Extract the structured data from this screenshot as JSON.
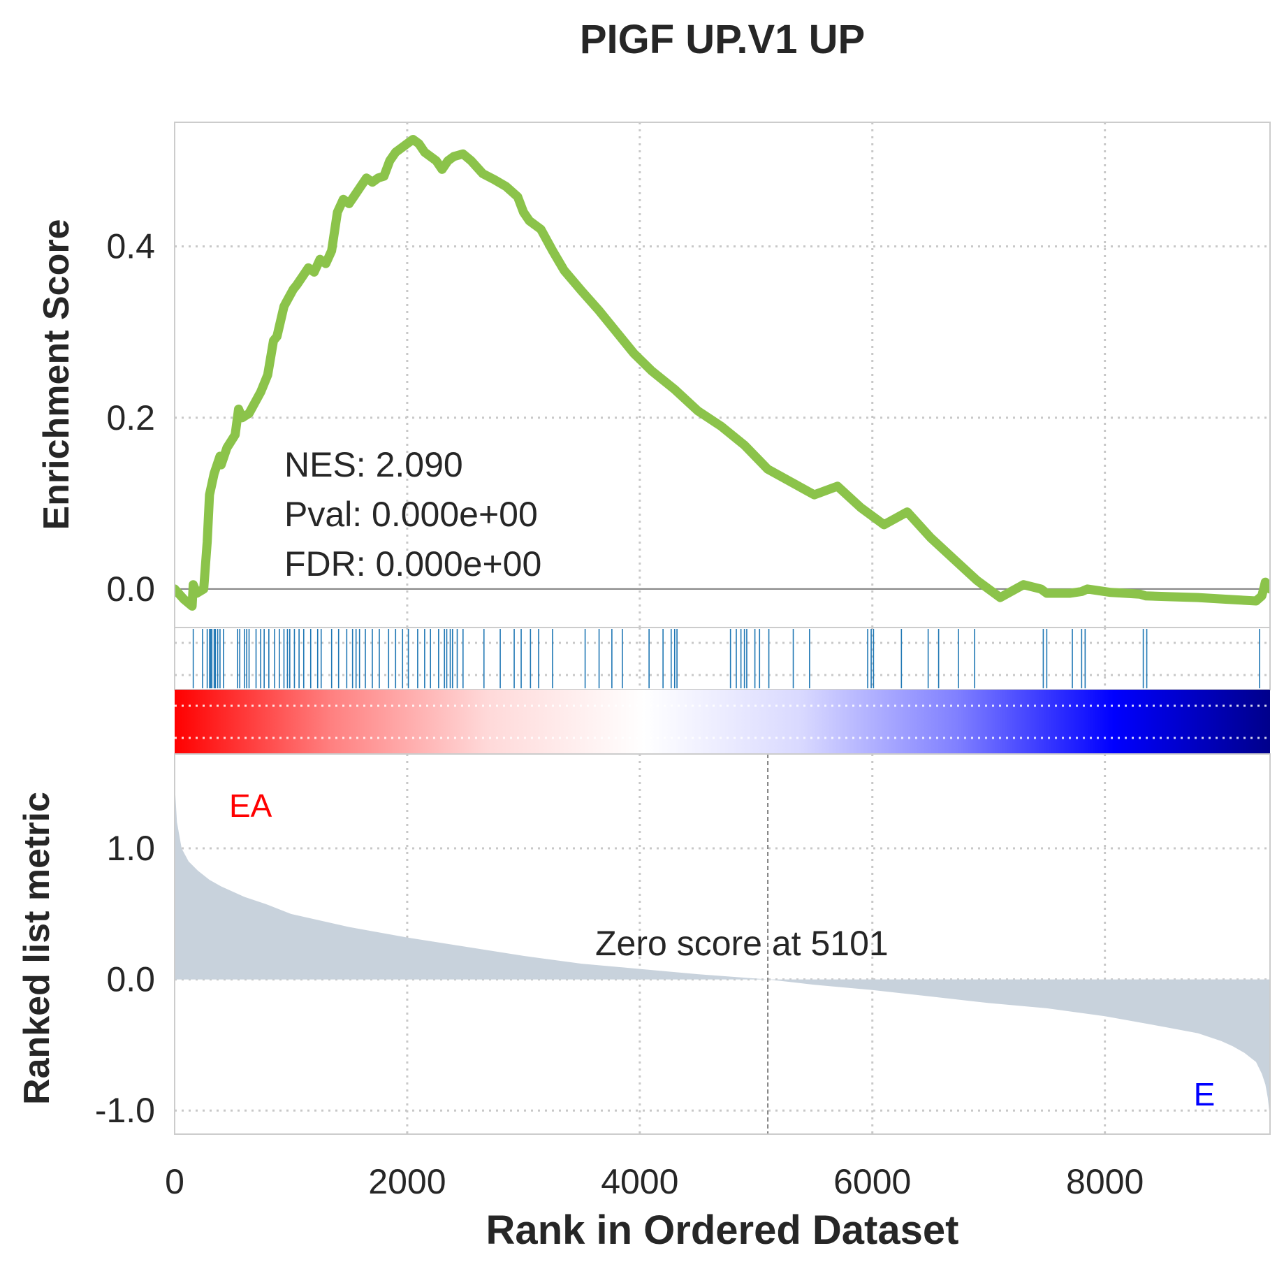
{
  "chart_data": {
    "type": "line",
    "title": "PIGF UP.V1 UP",
    "xlabel": "Rank in Ordered Dataset",
    "xlim": [
      0,
      9420
    ],
    "x_ticks": [
      "0",
      "2000",
      "4000",
      "6000",
      "8000"
    ],
    "x_tick_values": [
      0,
      2000,
      4000,
      6000,
      8000
    ],
    "grid": true,
    "es_panel": {
      "ylabel": "Enrichment Score",
      "ylim": [
        -0.045,
        0.545
      ],
      "y_ticks": [
        "0.0",
        "0.2",
        "0.4"
      ],
      "y_tick_values": [
        0.0,
        0.2,
        0.4
      ],
      "line_color": "#8bc34a",
      "series": [
        {
          "x": [
            0,
            80,
            150,
            160,
            190,
            250,
            280,
            300,
            340,
            390,
            400,
            450,
            520,
            550,
            580,
            640,
            700,
            740,
            800,
            850,
            880,
            940,
            960,
            1020,
            1050,
            1100,
            1150,
            1200,
            1250,
            1300,
            1350,
            1400,
            1450,
            1500,
            1550,
            1600,
            1650,
            1700,
            1750,
            1800,
            1850,
            1900,
            1950,
            2000,
            2050,
            2100,
            2150,
            2200,
            2250,
            2300,
            2350,
            2400,
            2480,
            2550,
            2650,
            2750,
            2850,
            2950,
            3000,
            3050,
            3150,
            3250,
            3350,
            3500,
            3650,
            3800,
            3950,
            4100,
            4300,
            4500,
            4700,
            4900,
            5100,
            5300,
            5500,
            5700,
            5900,
            6100,
            6300,
            6500,
            6700,
            6900,
            7100,
            7300,
            7450,
            7500,
            7700,
            7800,
            7850,
            8050,
            8300,
            8350,
            8550,
            8800,
            9050,
            9300,
            9350,
            9380,
            9420
          ],
          "y": [
            0.0,
            -0.012,
            -0.02,
            0.005,
            -0.005,
            0.0,
            0.055,
            0.11,
            0.135,
            0.155,
            0.145,
            0.165,
            0.18,
            0.21,
            0.2,
            0.205,
            0.22,
            0.23,
            0.25,
            0.29,
            0.295,
            0.33,
            0.335,
            0.35,
            0.355,
            0.365,
            0.375,
            0.37,
            0.385,
            0.38,
            0.395,
            0.44,
            0.455,
            0.45,
            0.46,
            0.47,
            0.48,
            0.475,
            0.48,
            0.482,
            0.5,
            0.51,
            0.515,
            0.52,
            0.525,
            0.52,
            0.51,
            0.505,
            0.5,
            0.49,
            0.5,
            0.505,
            0.508,
            0.5,
            0.485,
            0.478,
            0.47,
            0.458,
            0.44,
            0.43,
            0.42,
            0.395,
            0.372,
            0.348,
            0.325,
            0.3,
            0.275,
            0.255,
            0.233,
            0.208,
            0.19,
            0.168,
            0.14,
            0.125,
            0.11,
            0.12,
            0.095,
            0.075,
            0.09,
            0.06,
            0.035,
            0.01,
            -0.01,
            0.005,
            0.0,
            -0.005,
            -0.005,
            -0.003,
            0.0,
            -0.004,
            -0.006,
            -0.008,
            -0.009,
            -0.01,
            -0.012,
            -0.014,
            -0.008,
            0.008,
            0.0
          ]
        }
      ],
      "stats": {
        "nes": "NES: 2.090",
        "pval": "Pval: 0.000e+00",
        "fdr": "FDR: 0.000e+00"
      }
    },
    "hits": {
      "color": "#1f77b4",
      "positions": [
        160,
        240,
        280,
        300,
        310,
        320,
        340,
        350,
        370,
        390,
        420,
        540,
        560,
        600,
        620,
        640,
        700,
        740,
        770,
        810,
        860,
        900,
        940,
        970,
        990,
        1030,
        1070,
        1110,
        1170,
        1230,
        1260,
        1350,
        1410,
        1480,
        1530,
        1560,
        1590,
        1640,
        1700,
        1760,
        1840,
        1900,
        1960,
        2010,
        2090,
        2150,
        2200,
        2270,
        2320,
        2340,
        2370,
        2390,
        2430,
        2480,
        2660,
        2800,
        2920,
        2980,
        3060,
        3130,
        3250,
        3530,
        3650,
        3760,
        3850,
        4080,
        4200,
        4270,
        4300,
        4320,
        4780,
        4830,
        4870,
        4900,
        4920,
        4990,
        5030,
        5110,
        5320,
        5460,
        5960,
        5990,
        6010,
        6250,
        6480,
        6570,
        6740,
        6880,
        7470,
        7500,
        7720,
        7800,
        7830,
        8330,
        8360,
        9330
      ]
    },
    "color_bar": {
      "gradient": [
        "#ff0000",
        "#ff8080",
        "#ffd9d9",
        "#ffffff",
        "#d9d9ff",
        "#8080ff",
        "#0000ff",
        "#00008b"
      ]
    },
    "metric_panel": {
      "ylabel": "Ranked list metric",
      "ylim": [
        -1.18,
        1.72
      ],
      "y_ticks": [
        "1.0",
        "0.0",
        "-1.0"
      ],
      "y_tick_values": [
        1.0,
        0.0,
        -1.0
      ],
      "fill_color": "#c8d2dc",
      "x": [
        0,
        20,
        60,
        120,
        200,
        300,
        400,
        600,
        800,
        1000,
        1500,
        2000,
        2500,
        3000,
        3500,
        4000,
        4500,
        5101,
        5500,
        6000,
        6500,
        7000,
        7500,
        8000,
        8500,
        8800,
        9000,
        9100,
        9200,
        9300,
        9350,
        9380,
        9400,
        9420
      ],
      "values": [
        1.5,
        1.2,
        1.0,
        0.9,
        0.83,
        0.76,
        0.71,
        0.63,
        0.57,
        0.5,
        0.4,
        0.32,
        0.25,
        0.18,
        0.12,
        0.08,
        0.04,
        0.0,
        -0.04,
        -0.08,
        -0.13,
        -0.18,
        -0.22,
        -0.28,
        -0.36,
        -0.41,
        -0.47,
        -0.51,
        -0.56,
        -0.63,
        -0.72,
        -0.8,
        -0.9,
        -1.05
      ],
      "zero_cross": 5101,
      "zero_label": "Zero score at 5101",
      "label_pos": "EA",
      "label_neg": "E",
      "label_pos_color": "#ff0000",
      "label_neg_color": "#0000ff"
    }
  }
}
